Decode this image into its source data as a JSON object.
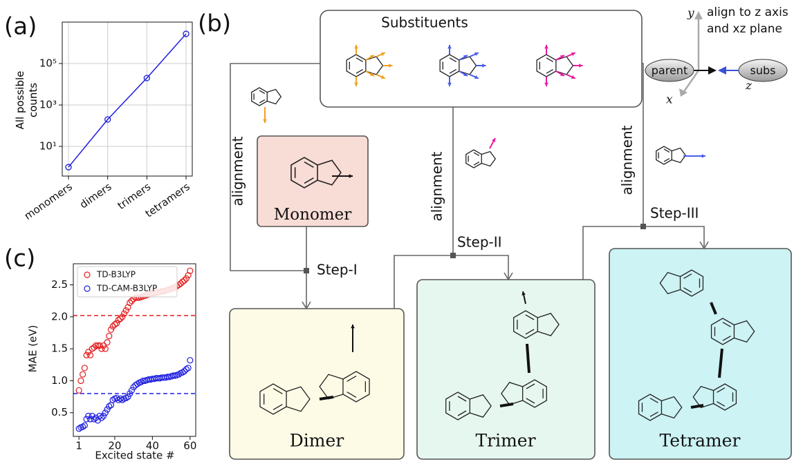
{
  "panel_labels": [
    "(a)",
    "(b)",
    "(c)"
  ],
  "chart_data": [
    {
      "type": "line",
      "categories": [
        "monomers",
        "dimers",
        "trimers",
        "tetramers"
      ],
      "series": [
        {
          "color": "#1c1ce0",
          "values": [
            1,
            200,
            20000,
            2700000
          ]
        }
      ],
      "ylabel": "All possible counts",
      "log_y": true,
      "ylim": [
        0.37,
        10000000
      ],
      "yticks": [
        {
          "value": 10,
          "label": "10¹"
        },
        {
          "value": 1000,
          "label": "10³"
        },
        {
          "value": 100000,
          "label": "10⁵"
        }
      ],
      "grid": true
    },
    {
      "type": "scatter",
      "x": [
        1,
        2,
        3,
        4,
        5,
        6,
        7,
        8,
        9,
        10,
        11,
        12,
        13,
        14,
        15,
        16,
        17,
        18,
        19,
        20,
        21,
        22,
        23,
        24,
        25,
        26,
        27,
        28,
        29,
        30,
        31,
        32,
        33,
        34,
        35,
        36,
        37,
        38,
        39,
        40,
        41,
        42,
        43,
        44,
        45,
        46,
        47,
        48,
        49,
        50,
        51,
        52,
        53,
        54,
        55,
        56,
        57,
        58,
        59,
        60
      ],
      "series": [
        {
          "name": "TD-B3LYP",
          "color": "#e41a1c",
          "values": [
            0.85,
            1.0,
            1.1,
            1.2,
            1.4,
            1.45,
            1.4,
            1.5,
            1.52,
            1.55,
            1.55,
            1.55,
            1.5,
            1.55,
            1.5,
            1.6,
            1.7,
            1.8,
            1.85,
            1.88,
            1.9,
            1.95,
            1.97,
            2.0,
            2.05,
            2.1,
            2.15,
            2.22,
            2.25,
            2.28,
            2.3,
            2.3,
            2.3,
            2.31,
            2.32,
            2.33,
            2.34,
            2.35,
            2.36,
            2.37,
            2.37,
            2.38,
            2.38,
            2.39,
            2.4,
            2.4,
            2.41,
            2.42,
            2.43,
            2.44,
            2.45,
            2.46,
            2.48,
            2.5,
            2.52,
            2.55,
            2.57,
            2.6,
            2.65,
            2.72
          ]
        },
        {
          "name": "TD-CAM-B3LYP",
          "color": "#1c1ce0",
          "values": [
            0.25,
            0.27,
            0.28,
            0.3,
            0.4,
            0.45,
            0.4,
            0.45,
            0.4,
            0.42,
            0.38,
            0.45,
            0.42,
            0.45,
            0.5,
            0.55,
            0.6,
            0.62,
            0.7,
            0.72,
            0.73,
            0.7,
            0.72,
            0.7,
            0.72,
            0.73,
            0.75,
            0.8,
            0.85,
            0.9,
            0.93,
            0.95,
            0.97,
            0.98,
            1.0,
            1.0,
            1.01,
            1.02,
            1.02,
            1.03,
            1.03,
            1.04,
            1.04,
            1.04,
            1.05,
            1.05,
            1.05,
            1.06,
            1.06,
            1.07,
            1.08,
            1.08,
            1.09,
            1.1,
            1.12,
            1.13,
            1.15,
            1.18,
            1.2,
            1.32
          ]
        }
      ],
      "hlines": [
        {
          "value": 2.02,
          "color": "#e41a1c"
        },
        {
          "value": 0.8,
          "color": "#1c1ce0"
        }
      ],
      "xlabel": "Excited state #",
      "ylabel": "MAE (eV)",
      "xlim": [
        -2,
        63
      ],
      "ylim": [
        0.13,
        2.83
      ],
      "xticks": [
        1,
        20,
        40,
        60
      ],
      "yticks": [
        0.5,
        {
          "value": 1,
          "label": "1.0"
        },
        1.5,
        {
          "value": 2,
          "label": "2.0"
        },
        2.5
      ],
      "legend": "upper left"
    }
  ],
  "diagram": {
    "boxes": {
      "substituents": "Substituents",
      "monomer": "Monomer",
      "dimer": "Dimer",
      "trimer": "Trimer",
      "tetramer": "Tetramer"
    },
    "alignment_labels": [
      "alignment",
      "alignment",
      "alignment"
    ],
    "steps": [
      "Step-I",
      "Step-II",
      "Step-III"
    ],
    "frame": {
      "note": [
        "align to z axis",
        "and xz plane"
      ],
      "parent": "parent",
      "subs": "subs",
      "axes": [
        "y",
        "x",
        "z"
      ]
    }
  }
}
